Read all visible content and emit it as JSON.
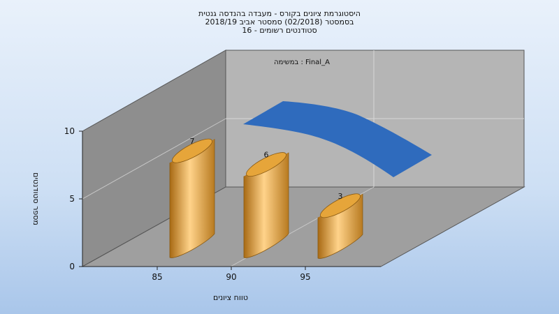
{
  "colors": {
    "bar": "#e6a53a",
    "line": "#2f6bbd",
    "back_wall": "#b3b3b3",
    "side_wall": "#8d8d8d",
    "floor": "#a0a0a0"
  },
  "chart_data": {
    "type": "bar",
    "title_lines": [
      "היסטוגרמת ציונים בקורס - מעבדה בהנדסה גנטית",
      "בסמסטר  (02/2018)  סמסטר אביב 2018/19",
      "סטודנטים רשומים - 16"
    ],
    "annotation": "במשימה : Final_A",
    "xlabel": "טווח ציונים",
    "ylabel": "מספר סטודנטים",
    "x_ticks": [
      85,
      90,
      95
    ],
    "y_ticks": [
      0,
      5,
      10
    ],
    "ylim": [
      0,
      10
    ],
    "categories": [
      85,
      90,
      95
    ],
    "values": [
      7,
      6,
      3
    ],
    "data_labels": [
      "7",
      "6",
      "3"
    ],
    "grid": true
  }
}
